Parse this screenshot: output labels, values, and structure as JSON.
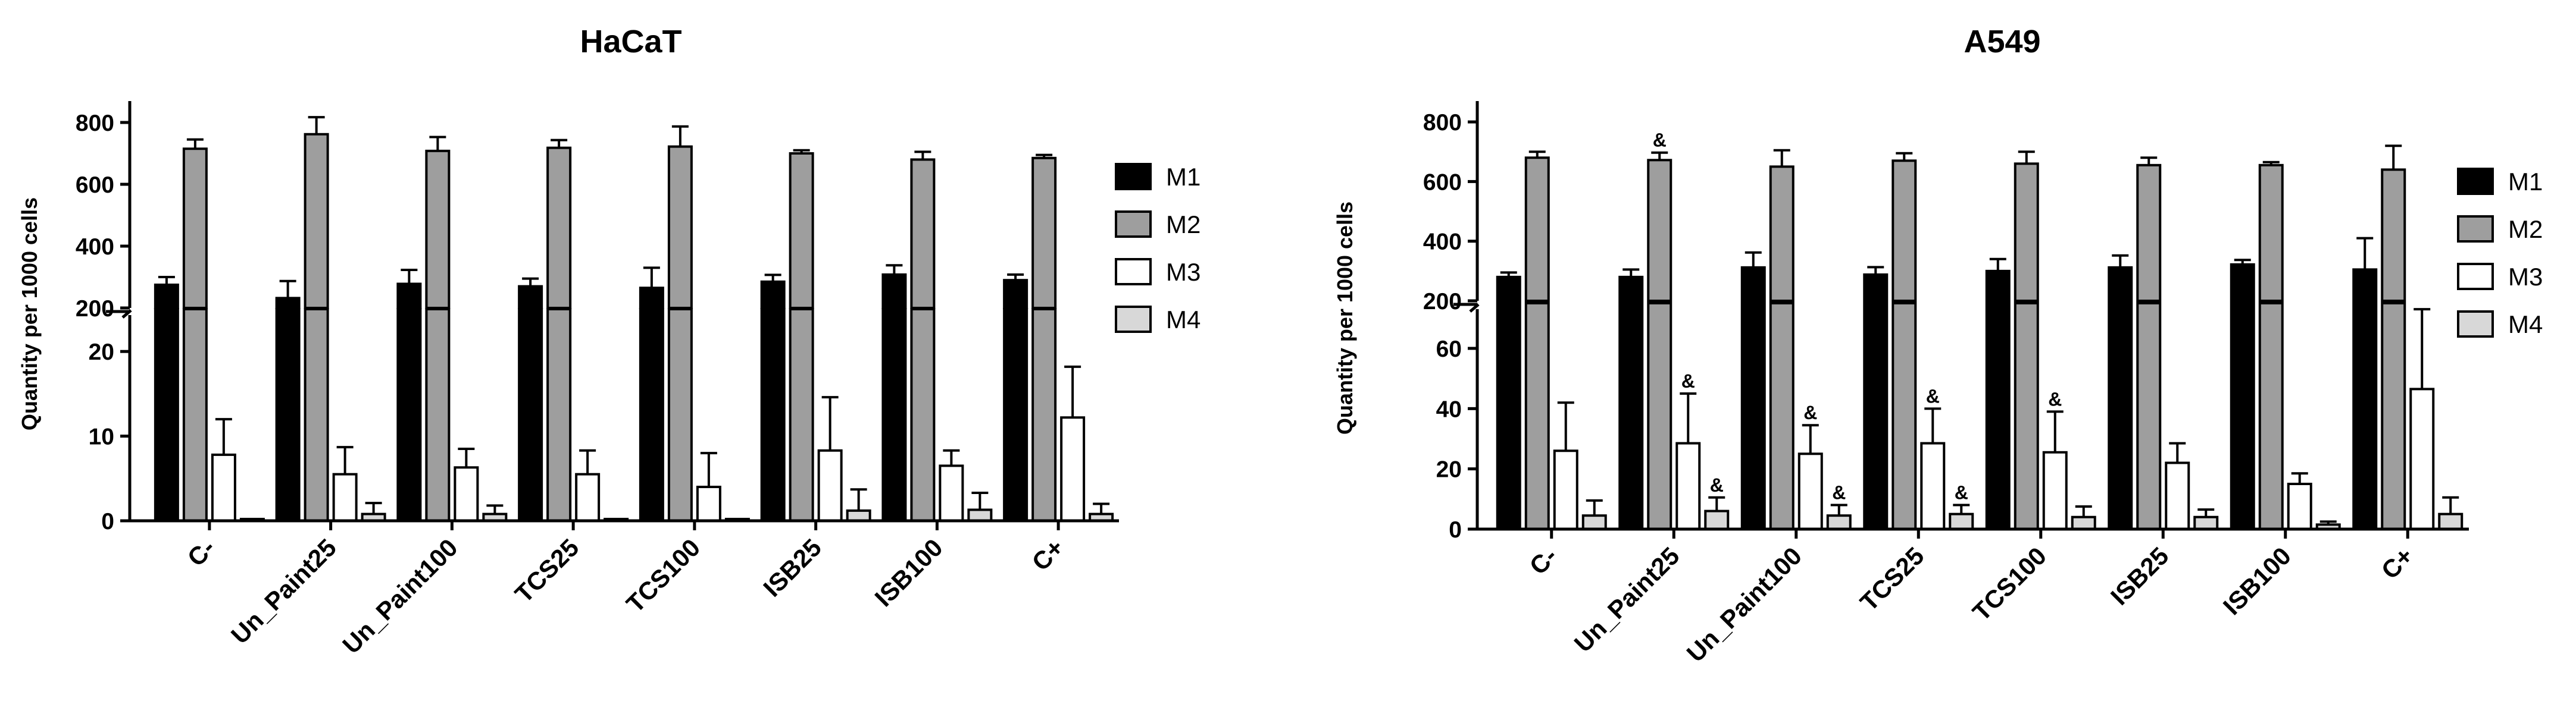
{
  "chart_data": [
    {
      "type": "bar",
      "title": "HaCaT",
      "ylabel": "Quantity per 1000 cells",
      "xlabel": "",
      "categories": [
        "C-",
        "Un_Paint25",
        "Un_Paint100",
        "TCS25",
        "TCS100",
        "ISB25",
        "ISB100",
        "C+"
      ],
      "y_axis_break": true,
      "ylim_lower": [
        0,
        25
      ],
      "ylim_upper": [
        200,
        850
      ],
      "yticks_lower": [
        0,
        10,
        20
      ],
      "yticks_upper": [
        200,
        400,
        600,
        800
      ],
      "legend": "right",
      "grid": false,
      "series": [
        {
          "name": "M1",
          "color": "#000000",
          "values": [
            275,
            232,
            278,
            270,
            265,
            285,
            308,
            290
          ],
          "errors": [
            25,
            55,
            45,
            25,
            65,
            22,
            30,
            18
          ]
        },
        {
          "name": "M2",
          "color": "#9e9e9e",
          "values": [
            715,
            762,
            708,
            718,
            722,
            700,
            680,
            685
          ],
          "errors": [
            30,
            55,
            45,
            25,
            65,
            10,
            25,
            10
          ]
        },
        {
          "name": "M3",
          "color": "#ffffff",
          "values": [
            7.8,
            5.5,
            6.3,
            5.5,
            4.0,
            8.3,
            6.5,
            12.2
          ],
          "errors": [
            4.2,
            3.2,
            2.2,
            2.8,
            4.0,
            6.3,
            1.8,
            6.0
          ]
        },
        {
          "name": "M4",
          "color": "#d8d8d8",
          "values": [
            0,
            0.8,
            0.8,
            0,
            0,
            1.2,
            1.3,
            0.8
          ],
          "errors": [
            0,
            1.3,
            1.0,
            0,
            0,
            2.5,
            2.0,
            1.2
          ]
        }
      ],
      "markers": []
    },
    {
      "type": "bar",
      "title": "A549",
      "ylabel": "Quantity per 1000 cells",
      "xlabel": "",
      "categories": [
        "C-",
        "Un_Paint25",
        "Un_Paint100",
        "TCS25",
        "TCS100",
        "ISB25",
        "ISB100",
        "C+"
      ],
      "y_axis_break": true,
      "ylim_lower": [
        0,
        75
      ],
      "ylim_upper": [
        200,
        850
      ],
      "yticks_lower": [
        0,
        20,
        40,
        60
      ],
      "yticks_upper": [
        200,
        400,
        600,
        800
      ],
      "legend": "right",
      "grid": false,
      "series": [
        {
          "name": "M1",
          "color": "#000000",
          "values": [
            280,
            280,
            312,
            288,
            300,
            312,
            322,
            305
          ],
          "errors": [
            15,
            25,
            50,
            25,
            40,
            40,
            15,
            105
          ]
        },
        {
          "name": "M2",
          "color": "#9e9e9e",
          "values": [
            680,
            672,
            650,
            670,
            660,
            655,
            655,
            640
          ],
          "errors": [
            20,
            25,
            55,
            25,
            40,
            25,
            10,
            80
          ]
        },
        {
          "name": "M3",
          "color": "#ffffff",
          "values": [
            26,
            28.5,
            25,
            28.5,
            25.5,
            22,
            15,
            46.5
          ],
          "errors": [
            16,
            16.5,
            9.5,
            11.5,
            13.5,
            6.5,
            3.5,
            26.5
          ]
        },
        {
          "name": "M4",
          "color": "#d8d8d8",
          "values": [
            4.5,
            6,
            4.5,
            5,
            4,
            4,
            1.5,
            5
          ],
          "errors": [
            5,
            4.5,
            3.5,
            3,
            3.5,
            2.5,
            1,
            5.5
          ]
        }
      ],
      "markers": [
        {
          "category": 1,
          "series": 1,
          "label": "&"
        },
        {
          "category": 1,
          "series": 2,
          "label": "&"
        },
        {
          "category": 1,
          "series": 3,
          "label": "&"
        },
        {
          "category": 2,
          "series": 2,
          "label": "&"
        },
        {
          "category": 2,
          "series": 3,
          "label": "&"
        },
        {
          "category": 3,
          "series": 2,
          "label": "&"
        },
        {
          "category": 3,
          "series": 3,
          "label": "&"
        },
        {
          "category": 4,
          "series": 2,
          "label": "&"
        }
      ]
    }
  ]
}
